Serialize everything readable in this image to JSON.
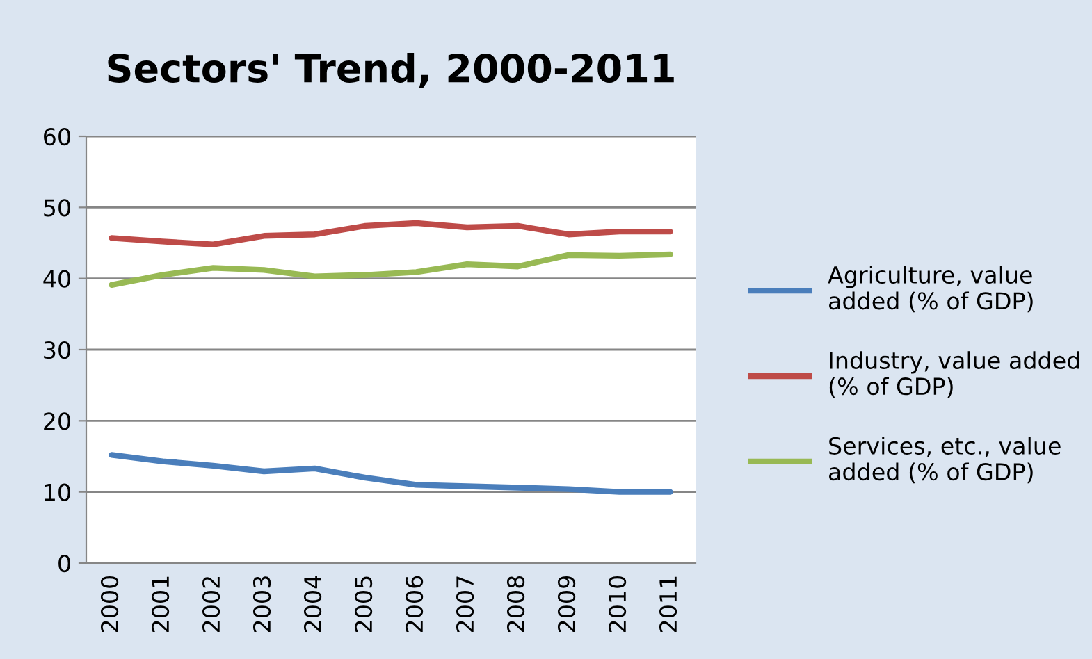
{
  "chart_data": {
    "type": "line",
    "title": "Sectors' Trend, 2000-2011",
    "categories": [
      "2000",
      "2001",
      "2002",
      "2003",
      "2004",
      "2005",
      "2006",
      "2007",
      "2008",
      "2009",
      "2010",
      "2011"
    ],
    "series": [
      {
        "name": "Agriculture, value added (% of GDP)",
        "color": "#4a7ebb",
        "values": [
          15.2,
          14.3,
          13.7,
          12.9,
          13.3,
          12.0,
          11.0,
          10.8,
          10.6,
          10.4,
          10.0,
          10.0
        ]
      },
      {
        "name": "Industry, value added (% of GDP)",
        "color": "#be4b48",
        "values": [
          45.7,
          45.2,
          44.8,
          46.0,
          46.2,
          47.4,
          47.8,
          47.2,
          47.4,
          46.2,
          46.6,
          46.6
        ]
      },
      {
        "name": "Services, etc., value added (% of GDP)",
        "color": "#98b954",
        "values": [
          39.1,
          40.5,
          41.5,
          41.2,
          40.3,
          40.5,
          40.9,
          42.0,
          41.7,
          43.3,
          43.2,
          43.4
        ]
      }
    ],
    "ylim": [
      0,
      60
    ],
    "yticks": [
      0,
      10,
      20,
      30,
      40,
      50,
      60
    ],
    "grid": "y",
    "legend": "right",
    "marker": "none",
    "line_style": "solid"
  }
}
